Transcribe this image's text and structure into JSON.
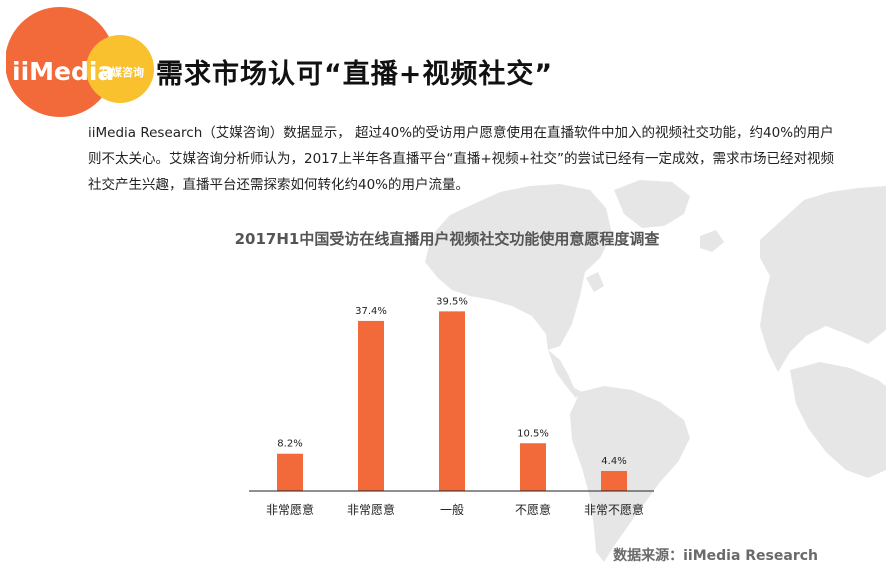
{
  "header": {
    "logo_text": "iiMedia",
    "logo_cn": "艾媒咨询",
    "title": "需求市场认可“直播+视频社交”"
  },
  "body": {
    "paragraph": "iiMedia Research（艾媒咨询）数据显示， 超过40%的受访用户愿意使用在直播软件中加入的视频社交功能，约40%的用户则不太关心。艾媒咨询分析师认为，2017上半年各直播平台“直播+视频+社交”的尝试已经有一定成效，需求市场已经对视频社交产生兴趣，直播平台还需探索如何转化约40%的用户流量。"
  },
  "chart_data": {
    "type": "bar",
    "title": "2017H1中国受访在线直播用户视频社交功能使用意愿程度调查",
    "categories": [
      "非常愿意",
      "非常愿意",
      "一般",
      "不愿意",
      "非常不愿意"
    ],
    "values": [
      8.2,
      37.4,
      39.5,
      10.5,
      4.4
    ],
    "value_labels": [
      "8.2%",
      "37.4%",
      "39.5%",
      "10.5%",
      "4.4%"
    ],
    "unit": "%",
    "ylim": [
      0,
      42
    ],
    "grid": false,
    "legend": "none",
    "bar_color": "#f26a3a"
  },
  "footer": {
    "source": "数据来源：iiMedia Research"
  },
  "colors": {
    "accent": "#f26a3a",
    "logo_yellow": "#f8c12d",
    "map_gray": "#e6e6e6"
  }
}
